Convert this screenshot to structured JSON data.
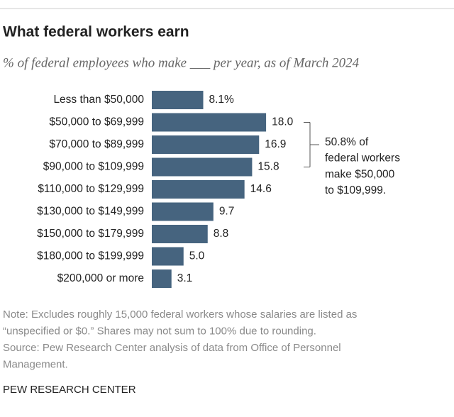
{
  "chart_data": {
    "type": "bar",
    "orientation": "horizontal",
    "title": "What federal workers earn",
    "subtitle": "% of federal employees who make ___ per year, as of March 2024",
    "categories": [
      "Less than $50,000",
      "$50,000 to $69,999",
      "$70,000 to $89,999",
      "$90,000 to $109,999",
      "$110,000 to $129,999",
      "$130,000 to $149,999",
      "$150,000 to $179,999",
      "$180,000 to $199,999",
      "$200,000 or more"
    ],
    "values": [
      8.1,
      18.0,
      16.9,
      15.8,
      14.6,
      9.7,
      8.8,
      5.0,
      3.1
    ],
    "value_labels": [
      "8.1%",
      "18.0",
      "16.9",
      "15.8",
      "14.6",
      "9.7",
      "8.8",
      "5.0",
      "3.1"
    ],
    "color": "#46647f",
    "annotation": [
      "50.8% of",
      "federal workers",
      "make $50,000",
      "to $109,999."
    ],
    "note": [
      "Note: Excludes roughly 15,000 federal workers whose salaries are listed as",
      "“unspecified or $0.” Shares may not sum to 100% due to rounding.",
      "Source: Pew Research Center analysis of data from Office of Personnel",
      "Management."
    ],
    "source_credit": "PEW RESEARCH CENTER"
  }
}
